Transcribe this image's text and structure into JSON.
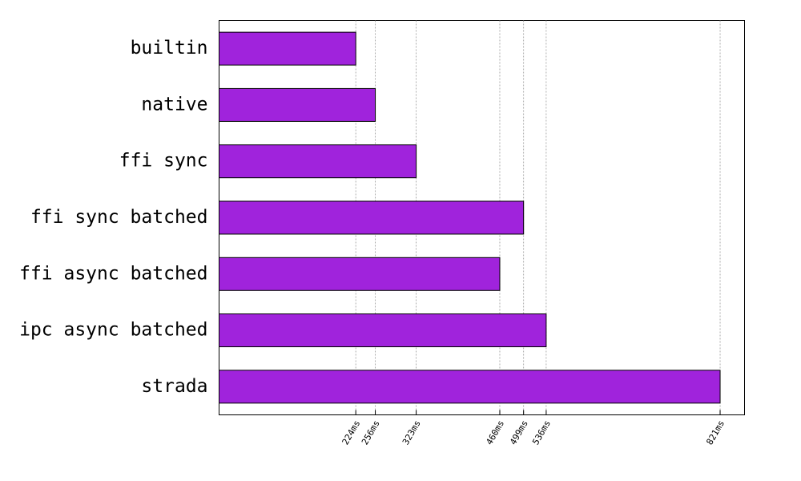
{
  "chart_data": {
    "type": "bar",
    "orientation": "horizontal",
    "categories": [
      "builtin",
      "native",
      "ffi sync",
      "ffi sync batched",
      "ffi async batched",
      "ipc async batched",
      "strada"
    ],
    "values": [
      224,
      256,
      323,
      499,
      460,
      536,
      821
    ],
    "color": "#a023dc",
    "xlim": [
      0,
      861
    ],
    "xticks": [
      {
        "value": 224,
        "label": "224ms"
      },
      {
        "value": 256,
        "label": "256ms"
      },
      {
        "value": 323,
        "label": "323ms"
      },
      {
        "value": 460,
        "label": "460ms"
      },
      {
        "value": 499,
        "label": "499ms"
      },
      {
        "value": 536,
        "label": "536ms"
      },
      {
        "value": 821,
        "label": "821ms"
      }
    ],
    "grid": true
  }
}
